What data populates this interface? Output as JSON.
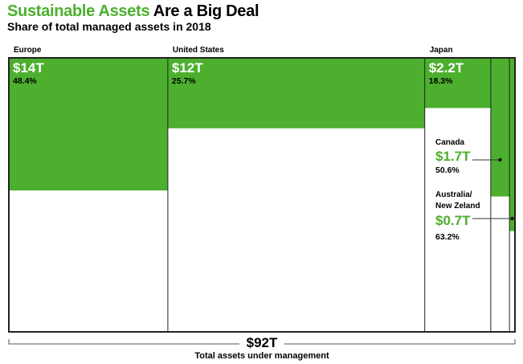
{
  "title": {
    "highlight": "Sustainable Assets",
    "rest": "Are a Big Deal"
  },
  "subtitle": "Share of total managed assets in 2018",
  "colors": {
    "sustainable": "#4caf2e",
    "border": "#222222"
  },
  "chart_data": {
    "type": "marimekko",
    "title": "Sustainable Assets Are a Big Deal",
    "subtitle": "Share of total managed assets in 2018",
    "total_value": 92,
    "total_label": "$92T",
    "total_caption": "Total assets under management",
    "regions": [
      {
        "name": "Europe",
        "sustainable_label": "$14T",
        "share_label": "48.4%",
        "share": 48.4,
        "total_assets": 28.9
      },
      {
        "name": "United States",
        "sustainable_label": "$12T",
        "share_label": "25.7%",
        "share": 25.7,
        "total_assets": 46.7
      },
      {
        "name": "Japan",
        "sustainable_label": "$2.2T",
        "share_label": "18.3%",
        "share": 18.3,
        "total_assets": 12.0
      },
      {
        "name": "Canada",
        "sustainable_label": "$1.7T",
        "share_label": "50.6%",
        "share": 50.6,
        "total_assets": 3.4
      },
      {
        "name": "Australia/\nNew Zeland",
        "sustainable_label": "$0.7T",
        "share_label": "63.2%",
        "share": 63.2,
        "total_assets": 1.0
      }
    ]
  }
}
